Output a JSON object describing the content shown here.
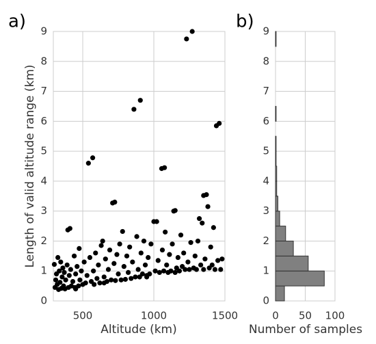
{
  "chart_data": [
    {
      "type": "scatter",
      "panel_label": "a)",
      "xlabel": "Altitude (km)",
      "ylabel": "Length of valid altitude range (km)",
      "color": "#000000",
      "grid": true,
      "xlim": [
        293,
        1500
      ],
      "xticks": [
        500,
        1000,
        1500
      ],
      "ylim": [
        0,
        9
      ],
      "yticks": [
        0,
        1,
        2,
        3,
        4,
        5,
        6,
        7,
        8,
        9
      ],
      "x": [
        300,
        305,
        310,
        315,
        320,
        325,
        330,
        335,
        340,
        345,
        350,
        355,
        360,
        365,
        370,
        375,
        380,
        390,
        395,
        410,
        400,
        405,
        415,
        420,
        430,
        440,
        445,
        450,
        460,
        470,
        475,
        480,
        490,
        500,
        510,
        520,
        530,
        540,
        570,
        550,
        560,
        575,
        580,
        590,
        600,
        610,
        620,
        630,
        640,
        650,
        660,
        670,
        680,
        690,
        700,
        710,
        725,
        720,
        730,
        740,
        750,
        760,
        770,
        780,
        790,
        800,
        810,
        820,
        830,
        840,
        850,
        860,
        905,
        870,
        880,
        890,
        900,
        910,
        920,
        930,
        940,
        950,
        960,
        970,
        980,
        1000,
        1020,
        1010,
        1030,
        1040,
        1055,
        1075,
        1060,
        1070,
        1080,
        1090,
        1100,
        1110,
        1120,
        1130,
        1140,
        1150,
        1160,
        1170,
        1180,
        1190,
        1200,
        1210,
        1220,
        1230,
        1270,
        1240,
        1250,
        1260,
        1280,
        1290,
        1300,
        1310,
        1320,
        1330,
        1340,
        1350,
        1370,
        1380,
        1360,
        1390,
        1400,
        1410,
        1420,
        1430,
        1440,
        1460,
        1450,
        1470,
        1480,
        1350,
        1150,
        950,
        650,
        450
      ],
      "values": [
        1.22,
        0.45,
        0.7,
        0.9,
        0.55,
        1.45,
        0.38,
        1.0,
        0.62,
        1.3,
        0.42,
        0.8,
        1.1,
        0.5,
        0.95,
        0.4,
        0.7,
        1.2,
        2.37,
        2.42,
        0.45,
        0.85,
        1.05,
        0.5,
        0.65,
        1.5,
        0.45,
        0.9,
        1.15,
        0.5,
        1.75,
        0.7,
        1.0,
        0.55,
        1.3,
        0.6,
        0.85,
        4.6,
        4.78,
        1.45,
        0.65,
        1.0,
        0.55,
        1.6,
        0.75,
        1.2,
        0.6,
        1.85,
        2.0,
        0.8,
        1.4,
        0.65,
        1.05,
        1.7,
        0.7,
        3.27,
        3.3,
        1.25,
        0.68,
        1.55,
        0.9,
        1.9,
        0.7,
        2.32,
        1.15,
        0.72,
        1.5,
        0.95,
        1.8,
        0.75,
        1.3,
        6.4,
        6.7,
        0.8,
        2.15,
        1.05,
        0.8,
        1.6,
        0.9,
        2.0,
        1.2,
        0.85,
        1.45,
        0.9,
        1.9,
        2.65,
        2.65,
        1.0,
        1.35,
        0.95,
        4.42,
        4.45,
        1.7,
        1.0,
        2.3,
        1.2,
        0.95,
        1.55,
        1.0,
        1.9,
        3.0,
        3.02,
        1.1,
        1.45,
        1.0,
        2.2,
        1.15,
        1.6,
        1.05,
        8.75,
        9.0,
        1.3,
        1.05,
        1.95,
        1.1,
        1.5,
        1.05,
        2.0,
        2.75,
        1.2,
        2.6,
        3.52,
        3.55,
        3.15,
        1.4,
        1.1,
        1.8,
        1.2,
        2.45,
        1.05,
        5.85,
        5.93,
        1.35,
        1.05,
        1.4,
        1.05,
        0.95,
        0.8,
        0.6,
        0.4
      ]
    },
    {
      "type": "histogram",
      "orientation": "horizontal",
      "panel_label": "b)",
      "xlabel": "Number of samples",
      "color": "#808080",
      "grid": true,
      "xlim": [
        0,
        100
      ],
      "xticks": [
        0,
        50,
        100
      ],
      "ylim": [
        0,
        9
      ],
      "yticks": [
        0,
        1,
        2,
        3,
        4,
        5,
        6,
        7,
        8,
        9
      ],
      "bins": [
        0,
        0.5,
        1,
        1.5,
        2,
        2.5,
        3,
        3.5,
        4,
        4.5,
        5,
        5.5,
        6,
        6.5,
        7,
        7.5,
        8,
        8.5,
        9
      ],
      "counts": [
        15,
        82,
        55,
        30,
        17,
        7,
        4,
        2,
        2,
        1,
        1,
        0,
        1,
        0,
        0,
        0,
        0,
        1
      ]
    }
  ]
}
